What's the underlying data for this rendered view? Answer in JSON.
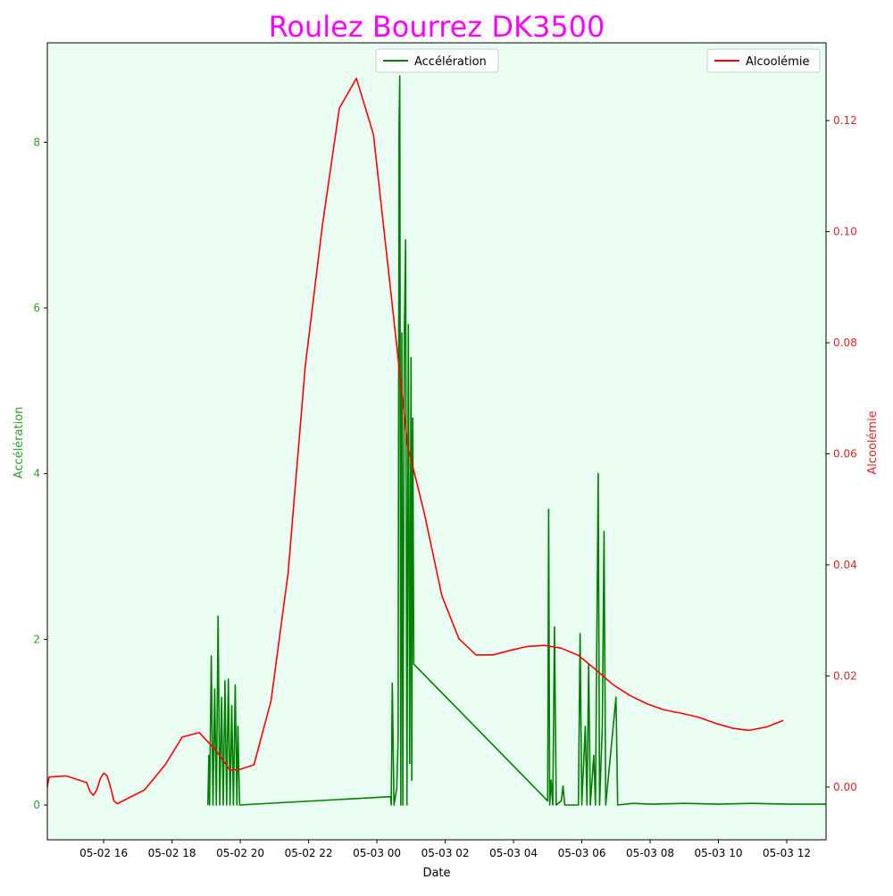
{
  "chart_data": {
    "type": "line",
    "title": "Roulez Bourrez DK3500",
    "xlabel": "Date",
    "x_tick_labels": [
      "05-02 16",
      "05-02 18",
      "05-02 20",
      "05-02 22",
      "05-03 00",
      "05-03 02",
      "05-03 04",
      "05-03 06",
      "05-03 08",
      "05-03 10",
      "05-03 12"
    ],
    "x_ticks_hours": [
      16,
      18,
      20,
      22,
      24,
      26,
      28,
      30,
      32,
      34,
      36
    ],
    "x_range_hours": [
      14.35,
      37.15
    ],
    "x_unit_note": "hours since 05-02 00:00",
    "grid": false,
    "background": "#e9fdf3",
    "left_axis": {
      "label": "Accélération",
      "color": "#2ca02c",
      "ylim": [
        -0.42,
        9.2
      ],
      "ticks": [
        0,
        2,
        4,
        6,
        8
      ]
    },
    "right_axis": {
      "label": "Alcoolémie",
      "color": "#d62728",
      "ylim": [
        -0.0095,
        0.134
      ],
      "ticks": [
        0.0,
        0.02,
        0.04,
        0.06,
        0.08,
        0.1,
        0.12
      ],
      "tick_labels": [
        "0.00",
        "0.02",
        "0.04",
        "0.06",
        "0.08",
        "0.10",
        "0.12"
      ]
    },
    "series": [
      {
        "name": "Accélération",
        "axis": "left",
        "color": "#008000",
        "points": [
          [
            19.05,
            0.0
          ],
          [
            19.08,
            0.6
          ],
          [
            19.1,
            0.0
          ],
          [
            19.15,
            1.8
          ],
          [
            19.2,
            0.0
          ],
          [
            19.25,
            1.4
          ],
          [
            19.3,
            0.0
          ],
          [
            19.35,
            2.28
          ],
          [
            19.4,
            0.0
          ],
          [
            19.45,
            1.3
          ],
          [
            19.5,
            0.0
          ],
          [
            19.55,
            1.5
          ],
          [
            19.6,
            0.0
          ],
          [
            19.65,
            1.52
          ],
          [
            19.7,
            0.0
          ],
          [
            19.75,
            1.2
          ],
          [
            19.8,
            0.0
          ],
          [
            19.85,
            1.45
          ],
          [
            19.9,
            0.0
          ],
          [
            19.93,
            0.95
          ],
          [
            19.98,
            0.0
          ],
          [
            24.4,
            0.1
          ],
          [
            24.42,
            0.0
          ],
          [
            24.45,
            1.47
          ],
          [
            24.5,
            0.0
          ],
          [
            24.58,
            0.2
          ],
          [
            24.62,
            0.8
          ],
          [
            24.65,
            8.2
          ],
          [
            24.67,
            8.8
          ],
          [
            24.7,
            0.0
          ],
          [
            24.73,
            5.7
          ],
          [
            24.76,
            0.0
          ],
          [
            24.8,
            5.6
          ],
          [
            24.84,
            6.82
          ],
          [
            24.88,
            0.0
          ],
          [
            24.92,
            5.8
          ],
          [
            24.96,
            0.5
          ],
          [
            25.0,
            5.4
          ],
          [
            25.02,
            0.3
          ],
          [
            25.05,
            4.67
          ],
          [
            25.08,
            1.7
          ],
          [
            29.0,
            0.05
          ],
          [
            29.03,
            3.57
          ],
          [
            29.06,
            0.0
          ],
          [
            29.1,
            0.3
          ],
          [
            29.15,
            0.0
          ],
          [
            29.2,
            2.15
          ],
          [
            29.25,
            0.0
          ],
          [
            29.4,
            0.05
          ],
          [
            29.45,
            0.23
          ],
          [
            29.5,
            0.0
          ],
          [
            29.9,
            0.0
          ],
          [
            29.95,
            2.07
          ],
          [
            30.0,
            0.0
          ],
          [
            30.1,
            0.95
          ],
          [
            30.15,
            0.0
          ],
          [
            30.2,
            1.7
          ],
          [
            30.25,
            0.0
          ],
          [
            30.35,
            0.6
          ],
          [
            30.4,
            0.0
          ],
          [
            30.45,
            2.6
          ],
          [
            30.48,
            4.0
          ],
          [
            30.52,
            0.0
          ],
          [
            30.6,
            0.95
          ],
          [
            30.65,
            3.3
          ],
          [
            30.7,
            0.0
          ],
          [
            31.0,
            1.3
          ],
          [
            31.05,
            0.0
          ],
          [
            31.5,
            0.02
          ],
          [
            32.0,
            0.01
          ],
          [
            33.0,
            0.02
          ],
          [
            34.0,
            0.01
          ],
          [
            35.0,
            0.02
          ],
          [
            36.0,
            0.01
          ],
          [
            37.15,
            0.01
          ]
        ]
      },
      {
        "name": "Alcoolémie",
        "axis": "right",
        "color": "#ff0000",
        "points": [
          [
            14.35,
            0.0
          ],
          [
            14.4,
            0.0018
          ],
          [
            14.9,
            0.002
          ],
          [
            15.5,
            0.0008
          ],
          [
            15.6,
            -0.0008
          ],
          [
            15.7,
            -0.0015
          ],
          [
            15.8,
            -0.0005
          ],
          [
            15.9,
            0.0015
          ],
          [
            16.0,
            0.0025
          ],
          [
            16.1,
            0.002
          ],
          [
            16.2,
            0.0
          ],
          [
            16.3,
            -0.0025
          ],
          [
            16.4,
            -0.003
          ],
          [
            17.2,
            -0.0005
          ],
          [
            17.8,
            0.004
          ],
          [
            18.3,
            0.009
          ],
          [
            18.8,
            0.0098
          ],
          [
            19.3,
            0.0065
          ],
          [
            19.7,
            0.003
          ],
          [
            20.0,
            0.0032
          ],
          [
            20.4,
            0.004
          ],
          [
            20.9,
            0.0155
          ],
          [
            21.4,
            0.0385
          ],
          [
            21.9,
            0.0757
          ],
          [
            22.4,
            0.101
          ],
          [
            22.9,
            0.1222
          ],
          [
            23.4,
            0.1276
          ],
          [
            23.9,
            0.1175
          ],
          [
            24.4,
            0.0895
          ],
          [
            24.9,
            0.0615
          ],
          [
            25.4,
            0.049
          ],
          [
            25.9,
            0.0345
          ],
          [
            26.4,
            0.0267
          ],
          [
            26.9,
            0.0238
          ],
          [
            27.4,
            0.0238
          ],
          [
            27.9,
            0.0246
          ],
          [
            28.4,
            0.0253
          ],
          [
            28.9,
            0.0255
          ],
          [
            29.4,
            0.025
          ],
          [
            29.9,
            0.0237
          ],
          [
            30.4,
            0.0212
          ],
          [
            30.9,
            0.0185
          ],
          [
            31.4,
            0.0165
          ],
          [
            31.9,
            0.015
          ],
          [
            32.4,
            0.0139
          ],
          [
            32.9,
            0.0133
          ],
          [
            33.4,
            0.0126
          ],
          [
            33.9,
            0.0115
          ],
          [
            34.4,
            0.0106
          ],
          [
            34.9,
            0.0102
          ],
          [
            35.4,
            0.0108
          ],
          [
            35.9,
            0.012
          ]
        ]
      }
    ],
    "legends": [
      {
        "label": "Accélération",
        "color": "#008000",
        "position": "top-center"
      },
      {
        "label": "Alcoolémie",
        "color": "#ff0000",
        "position": "top-right"
      }
    ]
  }
}
